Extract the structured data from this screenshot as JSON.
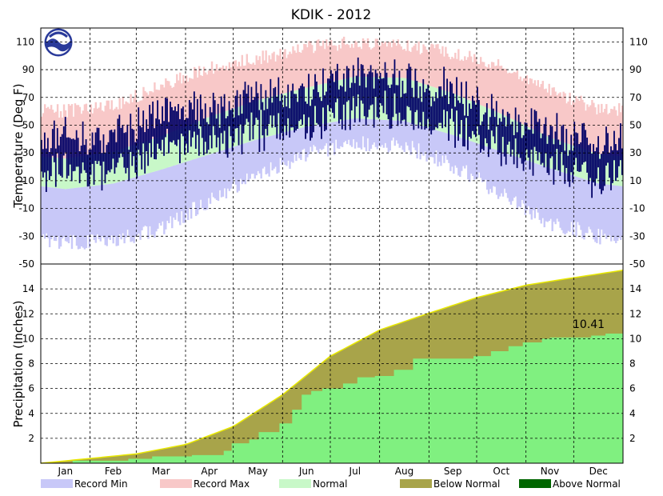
{
  "chart_data": {
    "type": "area",
    "title": "KDIK - 2012",
    "months": [
      "Jan",
      "Feb",
      "Mar",
      "Apr",
      "May",
      "Jun",
      "Jul",
      "Aug",
      "Sep",
      "Oct",
      "Nov",
      "Dec"
    ],
    "month_days": [
      31,
      29,
      31,
      30,
      31,
      30,
      31,
      31,
      30,
      31,
      30,
      31
    ],
    "temperature": {
      "ylabel": "Temperature (Deg F)",
      "ylim": [
        -50,
        120
      ],
      "ticks": [
        "-50",
        "-30",
        "-10",
        "10",
        "30",
        "50",
        "70",
        "90",
        "110"
      ],
      "normal_max_monthly_F": [
        26,
        31,
        42,
        56,
        68,
        77,
        85,
        84,
        73,
        58,
        41,
        29
      ],
      "normal_min_monthly_F": [
        4,
        8,
        18,
        29,
        40,
        49,
        55,
        53,
        43,
        31,
        19,
        8
      ],
      "record_max_monthly_F": [
        60,
        64,
        78,
        91,
        98,
        106,
        110,
        108,
        102,
        92,
        75,
        62
      ],
      "record_min_monthly_F": [
        -34,
        -33,
        -25,
        -4,
        15,
        29,
        37,
        35,
        21,
        1,
        -20,
        -30
      ],
      "observed_2012_monthly_F": [
        32,
        28,
        45,
        50,
        58,
        62,
        74,
        72,
        62,
        45,
        36,
        20
      ]
    },
    "precipitation": {
      "ylabel": "Precipitation (Inches)",
      "ylim": [
        0,
        16
      ],
      "ticks": [
        "2",
        "4",
        "6",
        "8",
        "10",
        "12",
        "14"
      ],
      "normal_cumulative_month_end": [
        0.38,
        0.75,
        1.5,
        2.95,
        5.5,
        8.6,
        10.7,
        12.05,
        13.3,
        14.3,
        14.9,
        15.5
      ],
      "observed_cumulative_steps": [
        {
          "day": 20,
          "value": 0.2
        },
        {
          "day": 55,
          "value": 0.35
        },
        {
          "day": 70,
          "value": 0.55
        },
        {
          "day": 95,
          "value": 0.65
        },
        {
          "day": 115,
          "value": 1.0
        },
        {
          "day": 120,
          "value": 1.6
        },
        {
          "day": 131,
          "value": 1.9
        },
        {
          "day": 137,
          "value": 2.5
        },
        {
          "day": 150,
          "value": 3.2
        },
        {
          "day": 158,
          "value": 4.3
        },
        {
          "day": 164,
          "value": 5.5
        },
        {
          "day": 170,
          "value": 5.8
        },
        {
          "day": 177,
          "value": 6.0
        },
        {
          "day": 190,
          "value": 6.4
        },
        {
          "day": 199,
          "value": 6.9
        },
        {
          "day": 210,
          "value": 7.0
        },
        {
          "day": 222,
          "value": 7.5
        },
        {
          "day": 234,
          "value": 8.4
        },
        {
          "day": 272,
          "value": 8.6
        },
        {
          "day": 283,
          "value": 9.0
        },
        {
          "day": 294,
          "value": 9.4
        },
        {
          "day": 303,
          "value": 9.7
        },
        {
          "day": 315,
          "value": 10.0
        },
        {
          "day": 320,
          "value": 10.1
        },
        {
          "day": 346,
          "value": 10.25
        },
        {
          "day": 355,
          "value": 10.41
        }
      ],
      "annotation": "10.41"
    },
    "legend": [
      "Record Min",
      "Record Max",
      "Normal",
      "Below Normal",
      "Above Normal"
    ],
    "colors": {
      "record_min": "#c8c8f8",
      "record_max": "#f8c8c8",
      "normal": "#c8f8c8",
      "observed_temp": "#000066",
      "below_normal": "#a8a44a",
      "above_normal": "#006600",
      "observed_precip": "#80f080",
      "normal_line": "#e8e800"
    }
  }
}
